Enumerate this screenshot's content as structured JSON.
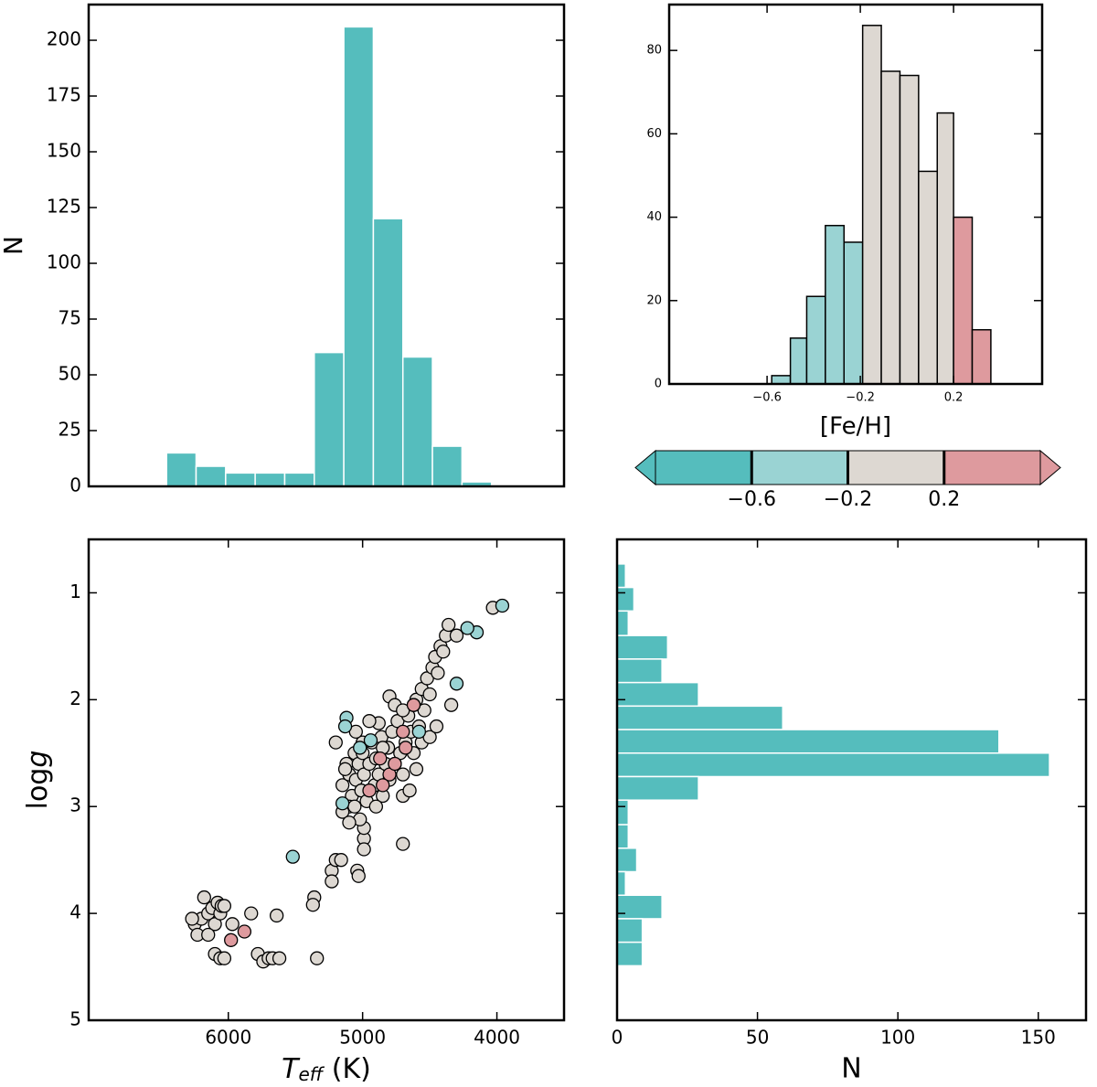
{
  "chart_data": [
    {
      "type": "histogram",
      "ylabel": "N",
      "bins": [
        6460,
        6240,
        6020,
        5800,
        5580,
        5360,
        5140,
        4920,
        4700,
        4480,
        4260,
        4040
      ],
      "values": [
        15,
        9,
        6,
        6,
        6,
        60,
        206,
        120,
        58,
        18,
        2
      ],
      "color": "#55bdbd",
      "edgecolor": "#ffffff",
      "xlim": [
        7040,
        3500
      ],
      "ylim": [
        0,
        216
      ],
      "yticks": [
        0,
        25,
        50,
        75,
        100,
        125,
        150,
        175,
        200
      ]
    },
    {
      "type": "histogram",
      "xlabel": "[Fe/H]",
      "bins": [
        -0.58,
        -0.5,
        -0.43,
        -0.35,
        -0.27,
        -0.19,
        -0.11,
        -0.03,
        0.05,
        0.13,
        0.2,
        0.28,
        0.36
      ],
      "values": [
        2,
        11,
        21,
        38,
        34,
        86,
        75,
        74,
        51,
        65,
        40,
        13
      ],
      "colors": [
        "#9ad3d3",
        "#9ad3d3",
        "#9ad3d3",
        "#9ad3d3",
        "#9ad3d3",
        "#ddd8d2",
        "#ddd8d2",
        "#ddd8d2",
        "#ddd8d2",
        "#ddd8d2",
        "#de9a9e",
        "#de9a9e"
      ],
      "edgecolor": "#000000",
      "xlim": [
        -1.02,
        0.58
      ],
      "ylim": [
        0,
        91
      ],
      "xticks": [
        {
          "value": -0.6,
          "label": "−0.6"
        },
        {
          "value": -0.2,
          "label": "−0.2"
        },
        0.2
      ],
      "yticks": [
        0,
        20,
        40,
        60,
        80
      ]
    },
    {
      "type": "colorbar",
      "extend": "both",
      "boundaries": [
        -1.0,
        -0.6,
        -0.2,
        0.2,
        0.6
      ],
      "colors": [
        "#55bdbd",
        "#9ad3d3",
        "#ddd8d2",
        "#de9a9e"
      ],
      "ticks": [
        {
          "value": -0.6,
          "label": "−0.6"
        },
        {
          "value": -0.2,
          "label": "−0.2"
        },
        0.2
      ]
    },
    {
      "type": "scatter",
      "xlabel": {
        "symbol": "T",
        "subscript": "eff",
        "unit": " (K)"
      },
      "ylabel": {
        "text": "log",
        "symbol": "g"
      },
      "xlim": [
        7040,
        3500
      ],
      "ylim": [
        5,
        0.5
      ],
      "xticks": [
        6000,
        5000,
        4000
      ],
      "yticks": [
        1,
        2,
        3,
        4,
        5
      ],
      "series": [
        {
          "color": "#ddd8d2",
          "x": [
            6250,
            6230,
            6200,
            6180,
            6150,
            6120,
            6100,
            6080,
            6060,
            6050,
            6030,
            6100,
            6060,
            6030,
            6150,
            6270,
            5970,
            5830,
            5780,
            5740,
            5700,
            5670,
            5620,
            5640,
            5340,
            5360,
            5370,
            5230,
            5230,
            5200,
            5160,
            5040,
            5030,
            4990,
            4990,
            4990,
            4700,
            5020,
            5150,
            5120,
            5100,
            5080,
            5060,
            5050,
            5030,
            5010,
            5000,
            4990,
            4970,
            4950,
            4930,
            4910,
            4900,
            4880,
            4860,
            4850,
            4830,
            4810,
            4800,
            4780,
            4760,
            4740,
            4720,
            4700,
            4680,
            4660,
            4640,
            4620,
            4600,
            4580,
            4560,
            4540,
            4520,
            4500,
            4480,
            4460,
            4440,
            4420,
            4400,
            4380,
            4360,
            4340,
            4300,
            4030,
            4800,
            4880,
            5100,
            5150,
            5100,
            5130,
            5200,
            4950,
            4700,
            4650,
            4600,
            5060,
            4900,
            4850,
            4760,
            4620,
            4560,
            4500,
            4450,
            4700,
            5000,
            5050
          ],
          "y": [
            4.1,
            4.2,
            4.05,
            3.85,
            4.0,
            3.95,
            4.1,
            3.9,
            4.0,
            3.93,
            3.93,
            4.38,
            4.42,
            4.42,
            4.2,
            4.05,
            4.1,
            4.0,
            4.38,
            4.45,
            4.42,
            4.42,
            4.42,
            4.02,
            4.42,
            3.85,
            3.92,
            3.6,
            3.7,
            3.5,
            3.5,
            3.6,
            3.65,
            3.3,
            3.4,
            3.2,
            3.35,
            3.12,
            2.8,
            2.6,
            2.7,
            2.9,
            2.5,
            2.75,
            2.6,
            2.85,
            2.5,
            2.7,
            2.95,
            2.6,
            2.4,
            2.8,
            2.55,
            2.7,
            2.35,
            2.9,
            2.6,
            2.45,
            2.75,
            2.3,
            2.6,
            2.2,
            2.5,
            2.7,
            2.4,
            2.15,
            2.3,
            2.5,
            2.0,
            2.25,
            1.9,
            2.1,
            1.8,
            1.95,
            1.7,
            1.6,
            1.75,
            1.5,
            1.55,
            1.4,
            1.3,
            2.05,
            1.4,
            1.14,
            1.97,
            2.22,
            3.0,
            3.05,
            3.15,
            2.65,
            2.4,
            2.2,
            2.9,
            2.85,
            2.65,
            3.0,
            3.0,
            2.45,
            2.05,
            2.05,
            2.4,
            2.35,
            2.25,
            2.1,
            2.4,
            2.3
          ]
        },
        {
          "color": "#9ad3d3",
          "x": [
            4150,
            3960,
            4220,
            4300,
            5120,
            5130,
            5020,
            4940,
            5520,
            5150,
            4580
          ],
          "y": [
            1.37,
            1.12,
            1.33,
            1.85,
            2.17,
            2.25,
            2.45,
            2.38,
            3.47,
            2.97,
            2.3
          ]
        },
        {
          "color": "#de9a9e",
          "x": [
            5980,
            5880,
            4870,
            4800,
            4760,
            4680,
            4620,
            4950,
            4850,
            4700
          ],
          "y": [
            4.25,
            4.17,
            2.55,
            2.7,
            2.6,
            2.45,
            2.05,
            2.85,
            2.8,
            2.3
          ]
        }
      ]
    },
    {
      "type": "histogram",
      "orientation": "horizontal",
      "xlabel": "N",
      "bins": [
        0.73,
        0.95,
        1.17,
        1.4,
        1.62,
        1.84,
        2.06,
        2.28,
        2.5,
        2.72,
        2.94,
        3.17,
        3.39,
        3.61,
        3.83,
        4.05,
        4.27,
        4.49
      ],
      "values": [
        3,
        6,
        4,
        18,
        16,
        29,
        59,
        136,
        154,
        29,
        4,
        4,
        7,
        3,
        16,
        9,
        9
      ],
      "color": "#55bdbd",
      "edgecolor": "#ffffff",
      "xlim": [
        0,
        167
      ],
      "ylim": [
        5,
        0.5
      ],
      "xticks": [
        0,
        50,
        100,
        150
      ],
      "yticks": [
        1,
        2,
        3,
        4,
        5
      ],
      "ytick_labels": false
    }
  ]
}
